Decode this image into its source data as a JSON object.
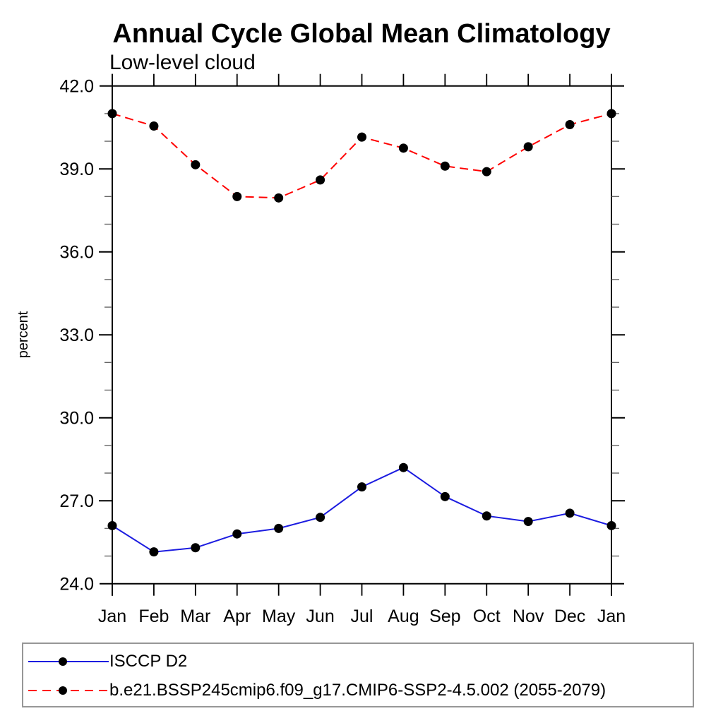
{
  "chart_data": {
    "type": "line",
    "title": "Annual Cycle Global Mean Climatology",
    "subtitle": "Low-level cloud",
    "ylabel": "percent",
    "categories": [
      "Jan",
      "Feb",
      "Mar",
      "Apr",
      "May",
      "Jun",
      "Jul",
      "Aug",
      "Sep",
      "Oct",
      "Nov",
      "Dec",
      "Jan"
    ],
    "ylim": [
      24.0,
      42.0
    ],
    "ytick_step": 3.0,
    "yminor_step": 1.0,
    "ytick_decimals": 1,
    "grid": false,
    "legend_position": "bottom-left-box",
    "axis_color": "#000000",
    "series": [
      {
        "name": "ISCCP D2",
        "color": "#1c1ce0",
        "line_style": "solid",
        "marker": "filled-circle",
        "marker_color": "#000000",
        "values": [
          26.1,
          25.15,
          25.3,
          25.8,
          26.0,
          26.4,
          27.5,
          28.2,
          27.15,
          26.45,
          26.25,
          26.55,
          26.1
        ]
      },
      {
        "name": "b.e21.BSSP245cmip6.f09_g17.CMIP6-SSP2-4.5.002 (2055-2079)",
        "color": "#ff0000",
        "line_style": "dashed",
        "marker": "filled-circle",
        "marker_color": "#000000",
        "values": [
          41.0,
          40.55,
          39.15,
          38.0,
          37.95,
          38.6,
          40.15,
          39.75,
          39.1,
          38.9,
          39.8,
          40.6,
          41.0
        ]
      }
    ]
  }
}
